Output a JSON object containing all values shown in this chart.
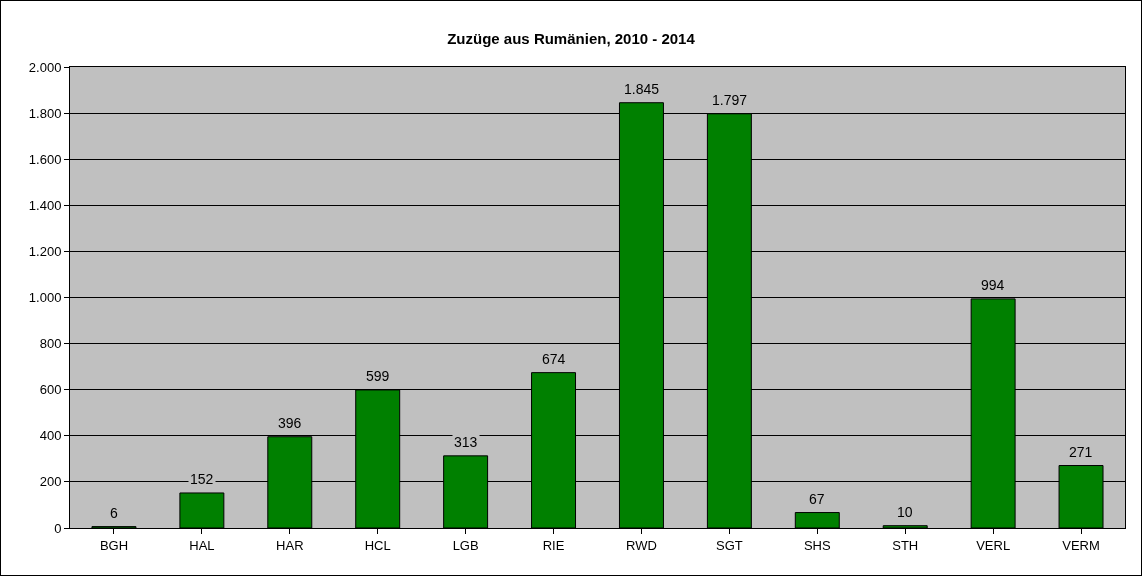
{
  "chart_data": {
    "type": "bar",
    "title": "Zuzüge aus Rumänien, 2010 - 2014",
    "categories": [
      "BGH",
      "HAL",
      "HAR",
      "HCL",
      "LGB",
      "RIE",
      "RWD",
      "SGT",
      "SHS",
      "STH",
      "VERL",
      "VERM"
    ],
    "values": [
      6,
      152,
      396,
      599,
      313,
      674,
      1845,
      1797,
      67,
      10,
      994,
      271
    ],
    "value_labels": [
      "6",
      "152",
      "396",
      "599",
      "313",
      "674",
      "1.845",
      "1.797",
      "67",
      "10",
      "994",
      "271"
    ],
    "color": "#008000",
    "ylim": [
      0,
      2000
    ],
    "yticks": [
      0,
      200,
      400,
      600,
      800,
      {
        "value": 1000,
        "label": "1.000"
      },
      {
        "value": 1200,
        "label": "1.200"
      },
      {
        "value": 1400,
        "label": "1.400"
      },
      {
        "value": 1600,
        "label": "1.600"
      },
      {
        "value": 1800,
        "label": "1.800"
      },
      {
        "value": 2000,
        "label": "2.000"
      }
    ],
    "grid": "y"
  }
}
